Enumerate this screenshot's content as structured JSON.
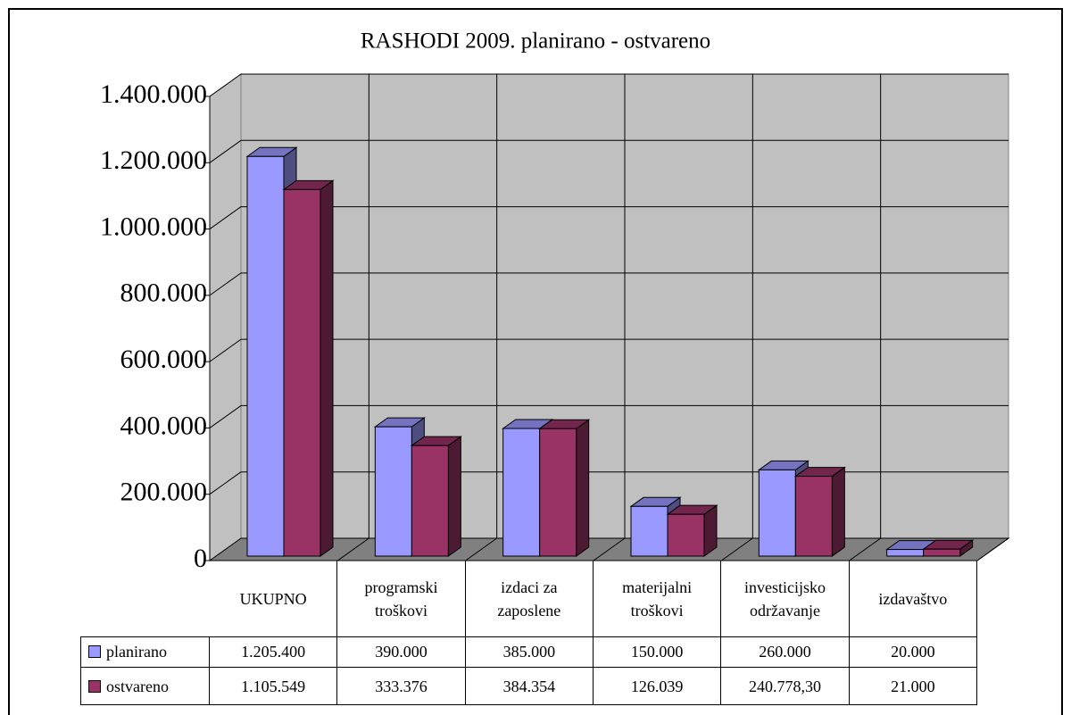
{
  "chart_data": {
    "type": "bar3d",
    "title": "RASHODI 2009. planirano - ostvareno",
    "categories": [
      "UKUPNO",
      "programski troškovi",
      "izdaci za zaposlene",
      "materijalni troškovi",
      "investicijsko održavanje",
      "izdavaštvo"
    ],
    "series": [
      {
        "name": "planirano",
        "color": "#9999ff",
        "values": [
          1205400,
          390000,
          385000,
          150000,
          260000,
          20000
        ],
        "value_labels": [
          "1.205.400",
          "390.000",
          "385.000",
          "150.000",
          "260.000",
          "20.000"
        ]
      },
      {
        "name": "ostvareno",
        "color": "#993366",
        "values": [
          1105549,
          333376,
          384354,
          126039,
          240778.3,
          21000
        ],
        "value_labels": [
          "1.105.549",
          "333.376",
          "384.354",
          "126.039",
          "240.778,30",
          "21.000"
        ]
      }
    ],
    "ylim": [
      0,
      1400000
    ],
    "yticks": [
      0,
      {
        "value": 200000,
        "label": "200.000"
      },
      {
        "value": 400000,
        "label": "400.000"
      },
      {
        "value": 600000,
        "label": "600.000"
      },
      {
        "value": 800000,
        "label": "800.000"
      },
      {
        "value": 1000000,
        "label": "1.000.000"
      },
      {
        "value": 1200000,
        "label": "1.200.000"
      },
      {
        "value": 1400000,
        "label": "1.400.000"
      }
    ],
    "grid": true
  }
}
